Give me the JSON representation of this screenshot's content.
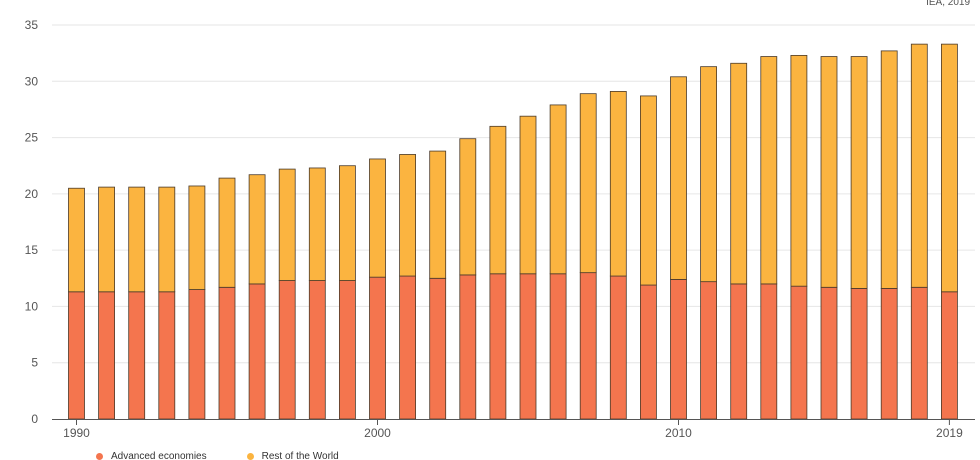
{
  "source_note": "IEA, 2019",
  "chart_data": {
    "type": "bar",
    "stacked": true,
    "title": "",
    "xlabel": "",
    "ylabel": "",
    "ylim": [
      0,
      35
    ],
    "yticks": [
      0,
      5,
      10,
      15,
      20,
      25,
      30,
      35
    ],
    "x_tick_labels": [
      "1990",
      "2000",
      "2010",
      "2019"
    ],
    "grid": true,
    "legend_position": "bottom-left",
    "categories": [
      1990,
      1991,
      1992,
      1993,
      1994,
      1995,
      1996,
      1997,
      1998,
      1999,
      2000,
      2001,
      2002,
      2003,
      2004,
      2005,
      2006,
      2007,
      2008,
      2009,
      2010,
      2011,
      2012,
      2013,
      2014,
      2015,
      2016,
      2017,
      2018,
      2019
    ],
    "series": [
      {
        "name": "Advanced economies",
        "color": "#f4754e",
        "values": [
          11.3,
          11.3,
          11.3,
          11.3,
          11.5,
          11.7,
          12.0,
          12.3,
          12.3,
          12.3,
          12.6,
          12.7,
          12.5,
          12.8,
          12.9,
          12.9,
          12.9,
          13.0,
          12.7,
          11.9,
          12.4,
          12.2,
          12.0,
          12.0,
          11.8,
          11.7,
          11.6,
          11.6,
          11.7,
          11.3
        ]
      },
      {
        "name": "Rest of the World",
        "color": "#fbb440",
        "values": [
          9.2,
          9.3,
          9.3,
          9.3,
          9.2,
          9.7,
          9.7,
          9.9,
          10.0,
          10.2,
          10.5,
          10.8,
          11.3,
          12.1,
          13.1,
          14.0,
          15.0,
          15.9,
          16.4,
          16.8,
          18.0,
          19.1,
          19.6,
          20.2,
          20.5,
          20.5,
          20.6,
          21.1,
          21.6,
          22.0
        ]
      }
    ]
  }
}
